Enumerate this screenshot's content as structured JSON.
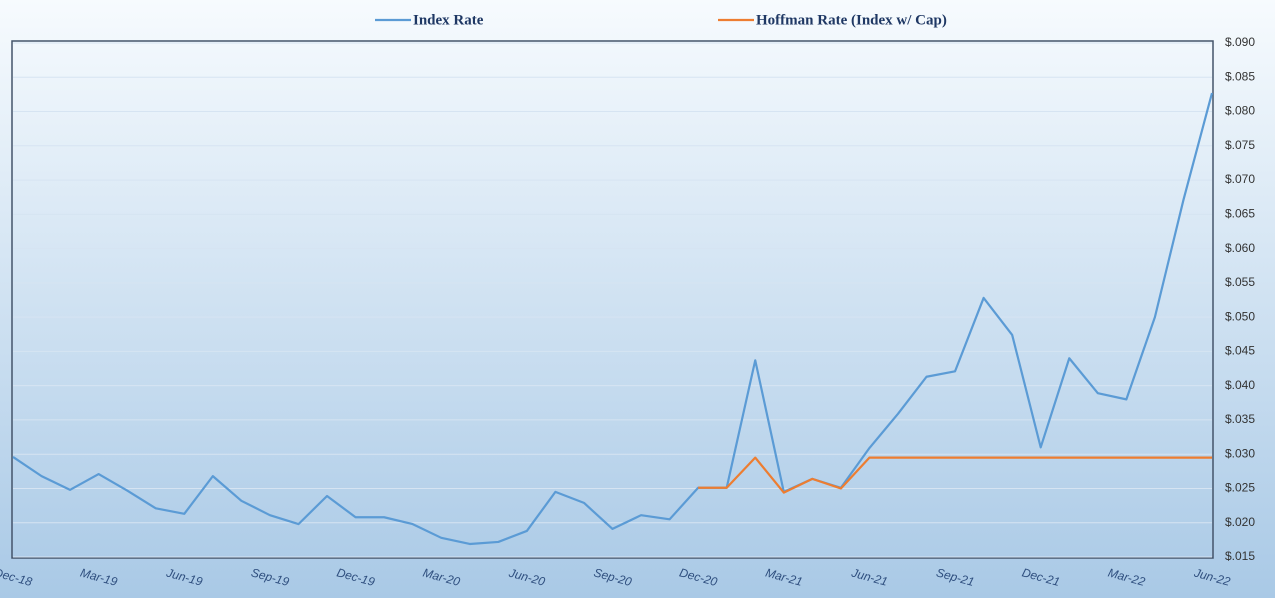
{
  "chart_data": {
    "type": "line",
    "categories": [
      "Dec-18",
      null,
      null,
      "Mar-19",
      null,
      null,
      "Jun-19",
      null,
      null,
      "Sep-19",
      null,
      null,
      "Dec-19",
      null,
      null,
      "Mar-20",
      null,
      null,
      "Jun-20",
      null,
      null,
      "Sep-20",
      null,
      null,
      "Dec-20",
      null,
      null,
      "Mar-21",
      null,
      null,
      "Jun-21",
      null,
      null,
      "Sep-21",
      null,
      null,
      "Dec-21",
      null,
      null,
      "Mar-22",
      null,
      null,
      "Jun-22"
    ],
    "series": [
      {
        "name": "Index Rate",
        "color": "#5b9bd5",
        "values": [
          0.0296,
          0.0268,
          0.0248,
          0.0271,
          0.0247,
          0.0221,
          0.0213,
          0.0268,
          0.0232,
          0.0211,
          0.0198,
          0.0239,
          0.0208,
          0.0208,
          0.0198,
          0.0178,
          0.0169,
          0.0172,
          0.0188,
          0.0245,
          0.0229,
          0.0191,
          0.0211,
          0.0205,
          0.0251,
          0.0251,
          0.0437,
          0.0245,
          0.0264,
          0.0251,
          0.0309,
          0.0359,
          0.0413,
          0.0421,
          0.0528,
          0.0474,
          0.031,
          0.044,
          0.0389,
          0.038,
          0.05,
          0.0671,
          0.0827
        ]
      },
      {
        "name": "Hoffman Rate (Index w/ Cap)",
        "color": "#ed7d31",
        "values": [
          null,
          null,
          null,
          null,
          null,
          null,
          null,
          null,
          null,
          null,
          null,
          null,
          null,
          null,
          null,
          null,
          null,
          null,
          null,
          null,
          null,
          null,
          null,
          null,
          0.0251,
          0.0251,
          0.0295,
          0.0244,
          0.0264,
          0.025,
          0.0295,
          0.0295,
          0.0295,
          0.0295,
          0.0295,
          0.0295,
          0.0295,
          0.0295,
          0.0295,
          0.0295,
          0.0295,
          0.0295,
          0.0295
        ]
      }
    ],
    "ylim": [
      0.015,
      0.09
    ],
    "yticks": [
      {
        "value": 0.015,
        "label": "$.015"
      },
      {
        "value": 0.02,
        "label": "$.020"
      },
      {
        "value": 0.025,
        "label": "$.025"
      },
      {
        "value": 0.03,
        "label": "$.030"
      },
      {
        "value": 0.035,
        "label": "$.035"
      },
      {
        "value": 0.04,
        "label": "$.040"
      },
      {
        "value": 0.045,
        "label": "$.045"
      },
      {
        "value": 0.05,
        "label": "$.050"
      },
      {
        "value": 0.055,
        "label": "$.055"
      },
      {
        "value": 0.06,
        "label": "$.060"
      },
      {
        "value": 0.065,
        "label": "$.065"
      },
      {
        "value": 0.07,
        "label": "$.070"
      },
      {
        "value": 0.075,
        "label": "$.075"
      },
      {
        "value": 0.08,
        "label": "$.080"
      },
      {
        "value": 0.085,
        "label": "$.085"
      },
      {
        "value": 0.09,
        "label": "$.090"
      }
    ],
    "grid": true,
    "legend": "top"
  }
}
